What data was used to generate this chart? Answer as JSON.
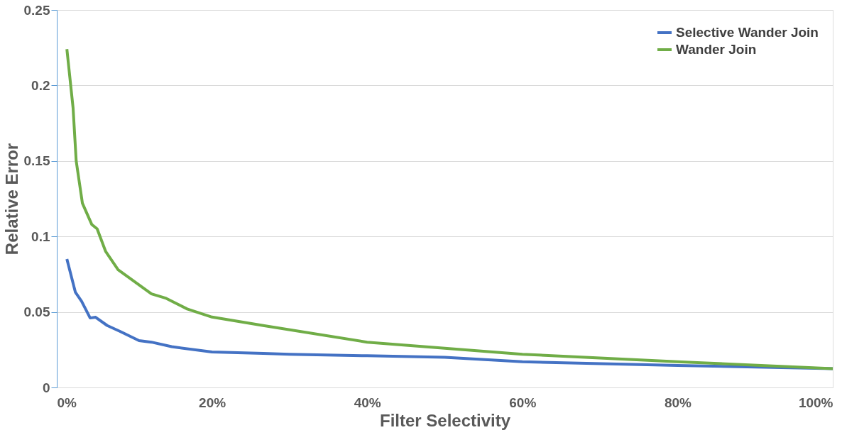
{
  "chart_data": {
    "type": "line",
    "xlabel": "Filter Selectivity",
    "ylabel": "Relative Error",
    "xlim": [
      0,
      100
    ],
    "xticks": [
      {
        "value": 0,
        "label": "0%"
      },
      {
        "value": 20,
        "label": "20%"
      },
      {
        "value": 40,
        "label": "40%"
      },
      {
        "value": 60,
        "label": "60%"
      },
      {
        "value": 80,
        "label": "80%"
      },
      {
        "value": 100,
        "label": "100%"
      }
    ],
    "ylim": [
      0,
      0.25
    ],
    "yticks": [
      0,
      0.05,
      0.1,
      0.15,
      0.2,
      0.25
    ],
    "grid": "y",
    "legend": "top right",
    "marker": "none",
    "line_style": "solid",
    "series": [
      {
        "name": "Selective Wander Join",
        "color": "#4472c4",
        "x": [
          1.3,
          2.4,
          3.2,
          4.3,
          5.0,
          6.5,
          8.2,
          10.6,
          12.2,
          14.8,
          20,
          26.6,
          30,
          40,
          50,
          60,
          80,
          100
        ],
        "values": [
          0.085,
          0.063,
          0.057,
          0.046,
          0.0465,
          0.041,
          0.037,
          0.031,
          0.03,
          0.027,
          0.0235,
          0.0225,
          0.022,
          0.021,
          0.02,
          0.017,
          0.0146,
          0.0125
        ]
      },
      {
        "name": "Wander Join",
        "color": "#70ad47",
        "x": [
          1.3,
          2.1,
          2.5,
          3.3,
          4.5,
          5.2,
          6.3,
          7.9,
          12.2,
          14.1,
          16.8,
          20,
          26.6,
          40,
          60,
          80,
          100
        ],
        "values": [
          0.224,
          0.185,
          0.15,
          0.122,
          0.108,
          0.105,
          0.09,
          0.078,
          0.062,
          0.059,
          0.052,
          0.0466,
          0.041,
          0.03,
          0.022,
          0.017,
          0.0125
        ]
      }
    ]
  }
}
